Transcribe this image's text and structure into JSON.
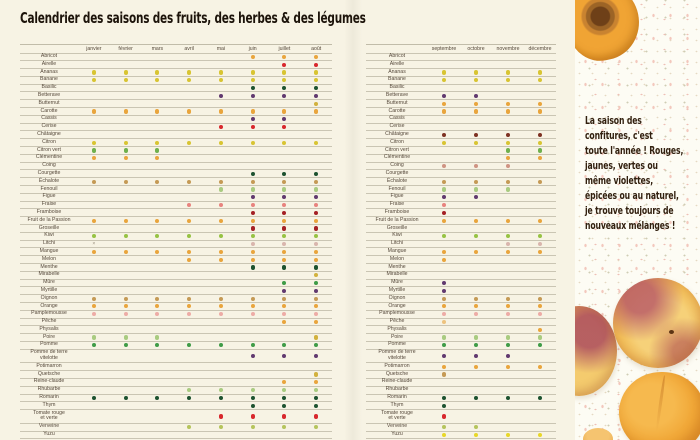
{
  "title": "Calendrier des saisons des fruits, des herbes & des légumes",
  "quote": "La saison des\nconfitures, c'est\ntoute l'année ! Rouges,\njaunes, vertes ou\nmême violettes,\népicées ou au naturel,\nje trouve toujours de\nnouveaux mélanges !",
  "palette": {
    "yellow": "#d8c432",
    "brightYellow": "#e8d728",
    "gold": "#d2b13d",
    "orange": "#e9a53d",
    "lightOrange": "#eec37e",
    "tan": "#c59a55",
    "red": "#d8272c",
    "darkRed": "#a42025",
    "maroon": "#7d3122",
    "purple": "#61396f",
    "darkGreen": "#1d5230",
    "green": "#3f9b47",
    "green2": "#6fb04d",
    "kiwiGreen": "#97c243",
    "lightGreen": "#a9cb80",
    "yellowGreen": "#b5c45c",
    "fraisePink": "#e8837e",
    "palePink": "#edaca6",
    "litchiPink": "#d9b6ad",
    "coingPink": "#cf9483"
  },
  "tables": {
    "left": {
      "months": [
        "janvier",
        "février",
        "mars",
        "avril",
        "mai",
        "juin",
        "juillet",
        "août"
      ],
      "month_numbers": [
        1,
        2,
        3,
        4,
        5,
        6,
        7,
        8
      ]
    },
    "right": {
      "months": [
        "septembre",
        "octobre",
        "novembre",
        "décembre"
      ],
      "month_numbers": [
        9,
        10,
        11,
        12
      ]
    }
  },
  "rows": [
    {
      "label": "Abricot",
      "marks": [
        {
          "m": [
            6,
            7,
            8
          ],
          "c": "orange"
        }
      ]
    },
    {
      "label": "Airelle",
      "marks": [
        {
          "m": [
            7,
            8
          ],
          "c": "red"
        }
      ]
    },
    {
      "label": "Ananas",
      "marks": [
        {
          "m": [
            1,
            2,
            3,
            4,
            5,
            6,
            7,
            8,
            9,
            10,
            11,
            12
          ],
          "c": "yellow"
        }
      ]
    },
    {
      "label": "Banane",
      "marks": [
        {
          "m": [
            1,
            2,
            3,
            4,
            5,
            6,
            7,
            8,
            9,
            10,
            11,
            12
          ],
          "c": "yellow"
        }
      ]
    },
    {
      "label": "Basilic",
      "marks": [
        {
          "m": [
            6,
            7,
            8
          ],
          "c": "darkGreen"
        }
      ]
    },
    {
      "label": "Betterave",
      "marks": [
        {
          "m": [
            5,
            6,
            7,
            8,
            9,
            10
          ],
          "c": "purple"
        }
      ]
    },
    {
      "label": "Butternut",
      "marks": [
        {
          "m": [
            8
          ],
          "c": "gold"
        },
        {
          "m": [
            9,
            10,
            11,
            12
          ],
          "c": "orange"
        }
      ]
    },
    {
      "label": "Carotte",
      "marks": [
        {
          "m": [
            1,
            2,
            3,
            4,
            5,
            6,
            7,
            8,
            9,
            10,
            11,
            12
          ],
          "c": "orange"
        }
      ]
    },
    {
      "label": "Cassis",
      "marks": [
        {
          "m": [
            6,
            7
          ],
          "c": "purple"
        }
      ]
    },
    {
      "label": "Cerise",
      "marks": [
        {
          "m": [
            5,
            6,
            7
          ],
          "c": "red"
        }
      ]
    },
    {
      "label": "Châtaigne",
      "marks": [
        {
          "m": [
            9,
            10,
            11,
            12
          ],
          "c": "maroon"
        }
      ]
    },
    {
      "label": "Citron",
      "marks": [
        {
          "m": [
            1,
            2,
            3,
            4,
            5,
            6,
            7,
            8,
            9,
            10,
            11,
            12
          ],
          "c": "yellow"
        }
      ]
    },
    {
      "label": "Citron vert",
      "marks": [
        {
          "m": [
            1,
            2,
            3
          ],
          "c": "green2"
        },
        {
          "m": [
            11,
            12
          ],
          "c": "green2"
        }
      ]
    },
    {
      "label": "Clémentine",
      "marks": [
        {
          "m": [
            1,
            2,
            3
          ],
          "c": "orange"
        },
        {
          "m": [
            11,
            12
          ],
          "c": "orange"
        }
      ]
    },
    {
      "label": "Coing",
      "marks": [
        {
          "m": [
            9,
            10,
            11
          ],
          "c": "coingPink"
        }
      ]
    },
    {
      "label": "Courgette",
      "marks": [
        {
          "m": [
            6,
            7,
            8
          ],
          "c": "darkGreen"
        }
      ]
    },
    {
      "label": "Échalote",
      "marks": [
        {
          "m": [
            1,
            2,
            3,
            4,
            5,
            6,
            7,
            8,
            9,
            10,
            11,
            12
          ],
          "c": "tan"
        }
      ]
    },
    {
      "label": "Fenouil",
      "marks": [
        {
          "m": [
            5,
            6,
            7,
            8,
            9,
            10,
            11
          ],
          "c": "lightGreen"
        }
      ]
    },
    {
      "label": "Figue",
      "marks": [
        {
          "m": [
            6,
            7,
            8,
            9,
            10
          ],
          "c": "purple"
        }
      ]
    },
    {
      "label": "Fraise",
      "marks": [
        {
          "m": [
            4,
            5,
            6,
            7,
            8,
            9
          ],
          "c": "fraisePink"
        }
      ]
    },
    {
      "label": "Framboise",
      "marks": [
        {
          "m": [
            6,
            7,
            8,
            9
          ],
          "c": "darkRed"
        }
      ]
    },
    {
      "label": "Fruit de la Passion",
      "marks": [
        {
          "m": [
            1,
            2,
            3,
            4,
            5,
            6,
            7,
            8,
            9,
            10,
            11,
            12
          ],
          "c": "orange"
        }
      ]
    },
    {
      "label": "Groseille",
      "marks": [
        {
          "m": [
            6,
            7,
            8
          ],
          "c": "darkRed"
        }
      ]
    },
    {
      "label": "Kiwi",
      "marks": [
        {
          "m": [
            1,
            2,
            3,
            4,
            5,
            6,
            7,
            8,
            9,
            10,
            11,
            12
          ],
          "c": "kiwiGreen"
        }
      ]
    },
    {
      "label": "Litchi",
      "marks": [
        {
          "m": [
            1
          ],
          "c": "x"
        },
        {
          "m": [
            6,
            7,
            8
          ],
          "c": "litchiPink"
        },
        {
          "m": [
            11,
            12
          ],
          "c": "litchiPink"
        }
      ]
    },
    {
      "label": "Mangue",
      "marks": [
        {
          "m": [
            1,
            2,
            3,
            4,
            5,
            6,
            7,
            8,
            9,
            10,
            11,
            12
          ],
          "c": "orange"
        }
      ]
    },
    {
      "label": "Melon",
      "marks": [
        {
          "m": [
            4,
            5,
            6,
            7,
            8,
            9
          ],
          "c": "orange"
        }
      ]
    },
    {
      "label": "Menthe",
      "marks": [
        {
          "m": [
            6,
            7,
            8
          ],
          "c": "darkGreen"
        }
      ]
    },
    {
      "label": "Mirabelle",
      "marks": [
        {
          "m": [
            8
          ],
          "c": "gold"
        }
      ]
    },
    {
      "label": "Mûre",
      "marks": [
        {
          "m": [
            7,
            8
          ],
          "c": "green"
        },
        {
          "m": [
            9
          ],
          "c": "purple"
        }
      ]
    },
    {
      "label": "Myrtille",
      "marks": [
        {
          "m": [
            7,
            8,
            9
          ],
          "c": "purple"
        }
      ]
    },
    {
      "label": "Oignon",
      "marks": [
        {
          "m": [
            1,
            2,
            3,
            4,
            5,
            6,
            7,
            8,
            9,
            10,
            11,
            12
          ],
          "c": "tan"
        }
      ]
    },
    {
      "label": "Orange",
      "marks": [
        {
          "m": [
            1,
            2,
            3,
            4,
            5,
            6,
            7,
            8,
            9,
            10,
            11,
            12
          ],
          "c": "orange"
        }
      ]
    },
    {
      "label": "Pamplemousse",
      "marks": [
        {
          "m": [
            1,
            2,
            3,
            4,
            5,
            6,
            7,
            8,
            9,
            10,
            11,
            12
          ],
          "c": "palePink"
        }
      ]
    },
    {
      "label": "Pêche",
      "marks": [
        {
          "m": [
            7,
            8
          ],
          "c": "orange"
        },
        {
          "m": [
            9
          ],
          "c": "lightOrange"
        }
      ]
    },
    {
      "label": "Physalis",
      "marks": [
        {
          "m": [
            12
          ],
          "c": "orange"
        }
      ]
    },
    {
      "label": "Poire",
      "marks": [
        {
          "m": [
            1,
            2,
            3
          ],
          "c": "lightGreen"
        },
        {
          "m": [
            8
          ],
          "c": "gold"
        },
        {
          "m": [
            9,
            10,
            11,
            12
          ],
          "c": "lightGreen"
        }
      ]
    },
    {
      "label": "Pomme",
      "marks": [
        {
          "m": [
            1,
            2,
            3,
            4,
            5,
            6,
            7,
            8,
            9,
            10,
            11,
            12
          ],
          "c": "green"
        }
      ]
    },
    {
      "label": "Pomme de terre\nvitelotte",
      "marks": [
        {
          "m": [
            6,
            7,
            8,
            9,
            10,
            11
          ],
          "c": "purple"
        }
      ]
    },
    {
      "label": "Potimarron",
      "marks": [
        {
          "m": [
            9,
            10,
            11,
            12
          ],
          "c": "orange"
        }
      ]
    },
    {
      "label": "Quetsche",
      "marks": [
        {
          "m": [
            8
          ],
          "c": "gold"
        },
        {
          "m": [
            9
          ],
          "c": "tan"
        }
      ]
    },
    {
      "label": "Reine-claude",
      "marks": [
        {
          "m": [
            7,
            8
          ],
          "c": "orange"
        }
      ]
    },
    {
      "label": "Rhubarbe",
      "marks": [
        {
          "m": [
            4,
            5,
            6,
            7,
            8
          ],
          "c": "lightGreen"
        }
      ]
    },
    {
      "label": "Romarin",
      "marks": [
        {
          "m": [
            1,
            2,
            3,
            4,
            5,
            6,
            7,
            8,
            9,
            10,
            11,
            12
          ],
          "c": "darkGreen"
        }
      ]
    },
    {
      "label": "Thym",
      "marks": [
        {
          "m": [
            6,
            7,
            8,
            9
          ],
          "c": "darkGreen"
        }
      ]
    },
    {
      "label": "Tomate rouge\net verte",
      "marks": [
        {
          "m": [
            5,
            6,
            7,
            8,
            9
          ],
          "c": "red"
        }
      ]
    },
    {
      "label": "Verveine",
      "marks": [
        {
          "m": [
            4,
            5,
            6,
            7,
            8,
            9,
            10
          ],
          "c": "yellowGreen"
        }
      ]
    },
    {
      "label": "Yuzu",
      "marks": [
        {
          "m": [
            9,
            10,
            11,
            12
          ],
          "c": "brightYellow"
        }
      ]
    }
  ]
}
